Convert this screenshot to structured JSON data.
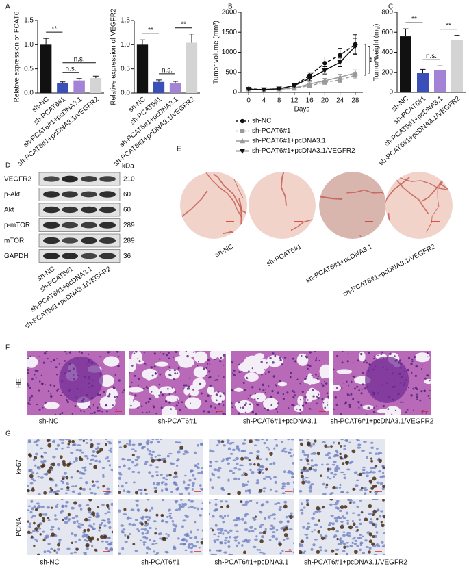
{
  "panel_labels": [
    "A",
    "B",
    "C",
    "D",
    "E",
    "F",
    "G"
  ],
  "chart_data": [
    {
      "type": "bar",
      "ylabel": "Relative expression of PCAT6",
      "categories": [
        "sh-NC",
        "sh-PCAT6#1",
        "sh-PCAT6#1+pcDNA3.1",
        "sh-PCAT6#1+pcDNA3.1/VEGFR2"
      ],
      "values": [
        1.0,
        0.21,
        0.26,
        0.31
      ],
      "errors": [
        0.13,
        0.02,
        0.04,
        0.04
      ],
      "colors": [
        "#111111",
        "#3b4fb8",
        "#a283d6",
        "#d4d4d4"
      ],
      "ylim": [
        0,
        1.5
      ],
      "yticks": [
        {
          "value": 0,
          "label": "0.0"
        },
        0.5,
        {
          "value": 1,
          "label": "1.0"
        },
        1.5
      ],
      "annotations": [
        {
          "text": "**",
          "from": 0,
          "to": 1
        },
        {
          "text": "n.s.",
          "from": 1,
          "to": 2
        },
        {
          "text": "n.s.",
          "from": 1,
          "to": 3
        }
      ]
    },
    {
      "type": "bar",
      "ylabel": "Relative expression of VEGFR2",
      "categories": [
        "sh-NC",
        "sh-PCAT6#1",
        "sh-PCAT6#1+pcDNA3.1",
        "sh-PCAT6#1+pcDNA3.1/VEGFR2"
      ],
      "values": [
        1.0,
        0.23,
        0.2,
        1.04
      ],
      "errors": [
        0.1,
        0.04,
        0.04,
        0.18
      ],
      "colors": [
        "#111111",
        "#3b4fb8",
        "#a283d6",
        "#d4d4d4"
      ],
      "ylim": [
        0,
        1.5
      ],
      "yticks": [
        {
          "value": 0,
          "label": "0.0"
        },
        0.5,
        {
          "value": 1,
          "label": "1.0"
        },
        1.5
      ],
      "annotations": [
        {
          "text": "**",
          "from": 0,
          "to": 1
        },
        {
          "text": "n.s.",
          "from": 1,
          "to": 2
        },
        {
          "text": "**",
          "from": 2,
          "to": 3
        }
      ]
    },
    {
      "type": "line",
      "ylabel": "Tumor volume (mm³)",
      "xlabel": "Days",
      "x": [
        0,
        4,
        8,
        12,
        16,
        20,
        24,
        28
      ],
      "xlim": [
        -2,
        30
      ],
      "xticks": [
        0,
        4,
        8,
        12,
        16,
        20,
        24,
        28
      ],
      "ylim": [
        0,
        2000
      ],
      "yticks": [
        0,
        500,
        1000,
        1500,
        2000
      ],
      "series": [
        {
          "name": "sh-NC",
          "color": "#111111",
          "marker": "circle",
          "dashed": true,
          "values": [
            90,
            70,
            90,
            170,
            420,
            730,
            930,
            1200
          ],
          "errors": [
            20,
            15,
            20,
            30,
            70,
            150,
            170,
            240
          ]
        },
        {
          "name": "sh-PCAT6#1",
          "color": "#9a9a9a",
          "marker": "square",
          "dashed": true,
          "values": [
            80,
            60,
            80,
            100,
            170,
            250,
            310,
            430
          ],
          "errors": [
            15,
            15,
            15,
            20,
            40,
            50,
            60,
            70
          ]
        },
        {
          "name": "sh-PCAT6#1+pcDNA3.1",
          "color": "#9a9a9a",
          "marker": "triangle",
          "dashed": false,
          "values": [
            80,
            60,
            80,
            110,
            210,
            290,
            380,
            480
          ],
          "errors": [
            15,
            15,
            15,
            25,
            50,
            60,
            70,
            80
          ]
        },
        {
          "name": "sh-PCAT6#1+pcDNA3.1/VEGFR2",
          "color": "#111111",
          "marker": "triangle-down",
          "dashed": false,
          "values": [
            80,
            70,
            90,
            170,
            350,
            550,
            750,
            1150
          ],
          "errors": [
            15,
            15,
            20,
            30,
            60,
            90,
            110,
            200
          ]
        }
      ],
      "annotations": [
        {
          "text": "**",
          "series": [
            0,
            1
          ]
        },
        {
          "text": "**",
          "series": [
            3,
            2
          ]
        }
      ]
    },
    {
      "type": "bar",
      "ylabel": "Tumor weight (mg)",
      "categories": [
        "sh-NC",
        "sh-PCAT6#1",
        "sh-PCAT6#1+pcDNA3.1",
        "sh-PCAT6#1+pcDNA3.1/VEGFR2"
      ],
      "values": [
        560,
        195,
        220,
        520
      ],
      "errors": [
        75,
        35,
        45,
        50
      ],
      "colors": [
        "#111111",
        "#3b4fb8",
        "#a283d6",
        "#d4d4d4"
      ],
      "ylim": [
        0,
        800
      ],
      "yticks": [
        0,
        200,
        400,
        600,
        800
      ],
      "annotations": [
        {
          "text": "**",
          "from": 0,
          "to": 1
        },
        {
          "text": "n.s.",
          "from": 1,
          "to": 2
        },
        {
          "text": "**",
          "from": 2,
          "to": 3
        }
      ]
    }
  ],
  "blot": {
    "unit": "kDa",
    "rows": [
      {
        "label": "VEGFR2",
        "kda": 210
      },
      {
        "label": "p-Akt",
        "kda": 60
      },
      {
        "label": "Akt",
        "kda": 60
      },
      {
        "label": "p-mTOR",
        "kda": 289
      },
      {
        "label": "mTOR",
        "kda": 289
      },
      {
        "label": "GAPDH",
        "kda": 36
      }
    ],
    "categories": [
      "sh-NC",
      "sh-PCAT6#1",
      "sh-PCAT6#1+pcDNA3.1",
      "sh-PCAT6#1+pcDNA3.1/VEGFR2"
    ]
  },
  "panel_e": {
    "captions": [
      "sh-NC",
      "sh-PCAT6#1",
      "sh-PCAT6#1+pcDNA3.1",
      "sh-PCAT6#1+pcDNA3.1/VEGFR2"
    ]
  },
  "panel_f": {
    "row_label": "HE",
    "captions": [
      "sh-NC",
      "sh-PCAT6#1",
      "sh-PCAT6#1+pcDNA3.1",
      "sh-PCAT6#1+pcDNA3.1/VEGFR2"
    ]
  },
  "panel_g": {
    "row_labels": [
      "ki-67",
      "PCNA"
    ],
    "captions": [
      "sh-NC",
      "sh-PCAT6#1",
      "sh-PCAT6#1+pcDNA3.1",
      "sh-PCAT6#1+pcDNA3.1/VEGFR2"
    ]
  }
}
